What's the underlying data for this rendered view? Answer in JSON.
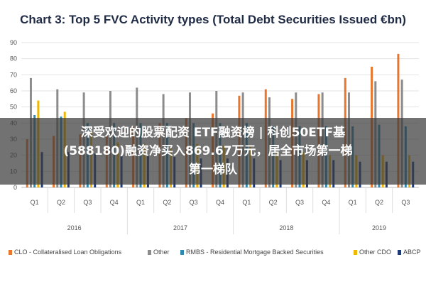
{
  "chart_data": {
    "type": "bar",
    "title": "Chart 3: Top 5 FVC Activity types (Total Debt Securities Issued €bn)",
    "categories": [
      "Q1",
      "Q2",
      "Q3",
      "Q4",
      "Q1",
      "Q2",
      "Q3",
      "Q4",
      "Q1",
      "Q2",
      "Q3",
      "Q4",
      "Q1",
      "Q2",
      "Q3"
    ],
    "years": [
      {
        "label": "2016",
        "span": 4
      },
      {
        "label": "2017",
        "span": 4
      },
      {
        "label": "2018",
        "span": 4
      },
      {
        "label": "2019",
        "span": 3
      }
    ],
    "ylim": [
      0,
      90
    ],
    "yticks": [
      0,
      10,
      20,
      30,
      40,
      50,
      60,
      70,
      80,
      90
    ],
    "series": [
      {
        "name": "CLO - Collateralised Loan Obligations",
        "color": "#e8762c",
        "values": [
          30,
          32,
          33,
          33,
          38,
          40,
          43,
          46,
          57,
          61,
          55,
          58,
          68,
          75,
          83
        ]
      },
      {
        "name": "Other",
        "color": "#8c8c8c",
        "values": [
          68,
          61,
          59,
          60,
          62,
          58,
          59,
          60,
          59,
          56,
          59,
          59,
          59,
          66,
          67
        ]
      },
      {
        "name": "RMBS - Residential Mortgage Backed Securities",
        "color": "#2e8ab0",
        "values": [
          45,
          44,
          40,
          40,
          40,
          40,
          40,
          40,
          40,
          38,
          38,
          38,
          38,
          39,
          38
        ]
      },
      {
        "name": "Other CDO",
        "color": "#f2b705",
        "values": [
          54,
          47,
          35,
          28,
          27,
          26,
          27,
          26,
          26,
          22,
          22,
          20,
          20,
          20,
          20
        ]
      },
      {
        "name": "ABCP",
        "color": "#1e3a78",
        "values": [
          22,
          22,
          21,
          20,
          20,
          19,
          18,
          18,
          18,
          17,
          17,
          17,
          16,
          16,
          16
        ]
      }
    ],
    "grid": true,
    "legend": "bottom"
  },
  "overlay": {
    "line1": "深受欢迎的股票配资 ETF融资榜 | 科创50ETF基",
    "line2": "(588180)融资净买入869.67万元，居全市场第一梯",
    "line3": "第一梯队"
  }
}
